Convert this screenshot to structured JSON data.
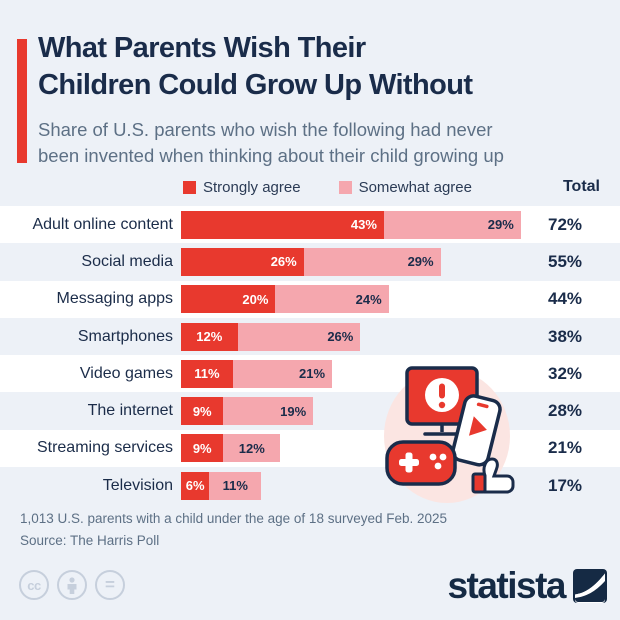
{
  "header": {
    "title_line1": "What Parents Wish Their",
    "title_line2": "Children Could Grow Up Without",
    "subtitle_line1": "Share of U.S. parents who wish the following had never",
    "subtitle_line2": "been invented when thinking about their child growing up"
  },
  "legend": {
    "strongly_label": "Strongly agree",
    "somewhat_label": "Somewhat agree",
    "total_label": "Total"
  },
  "chart_data": {
    "type": "bar",
    "orientation": "horizontal-stacked",
    "categories": [
      "Adult online content",
      "Social media",
      "Messaging apps",
      "Smartphones",
      "Video games",
      "The internet",
      "Streaming services",
      "Television"
    ],
    "series": [
      {
        "name": "Strongly agree",
        "color": "#e8392e",
        "values": [
          43,
          26,
          20,
          12,
          11,
          9,
          9,
          6
        ]
      },
      {
        "name": "Somewhat agree",
        "color": "#f5a7ae",
        "values": [
          29,
          29,
          24,
          26,
          21,
          19,
          12,
          11
        ]
      }
    ],
    "totals": [
      72,
      55,
      44,
      38,
      32,
      28,
      21,
      17
    ],
    "unit": "%",
    "value_labels_shown": true,
    "legend_position": "top",
    "grid": false
  },
  "footer": {
    "note": "1,013 U.S. parents with a child under the age of 18 surveyed Feb. 2025",
    "source": "Source: The Harris Poll"
  },
  "branding": {
    "logo_text": "statista"
  },
  "license": {
    "icons": [
      "cc-icon",
      "attribution-person-icon",
      "no-derivatives-equals-icon"
    ]
  },
  "colors": {
    "red": "#e8392e",
    "pink": "#f5a7ae",
    "navy": "#1a2c4a",
    "muted": "#5d7085",
    "page_bg": "#edf1f7",
    "row_white": "#ffffff",
    "blob_pink": "#fbe5e2",
    "license_gray": "#c6cfdc"
  }
}
